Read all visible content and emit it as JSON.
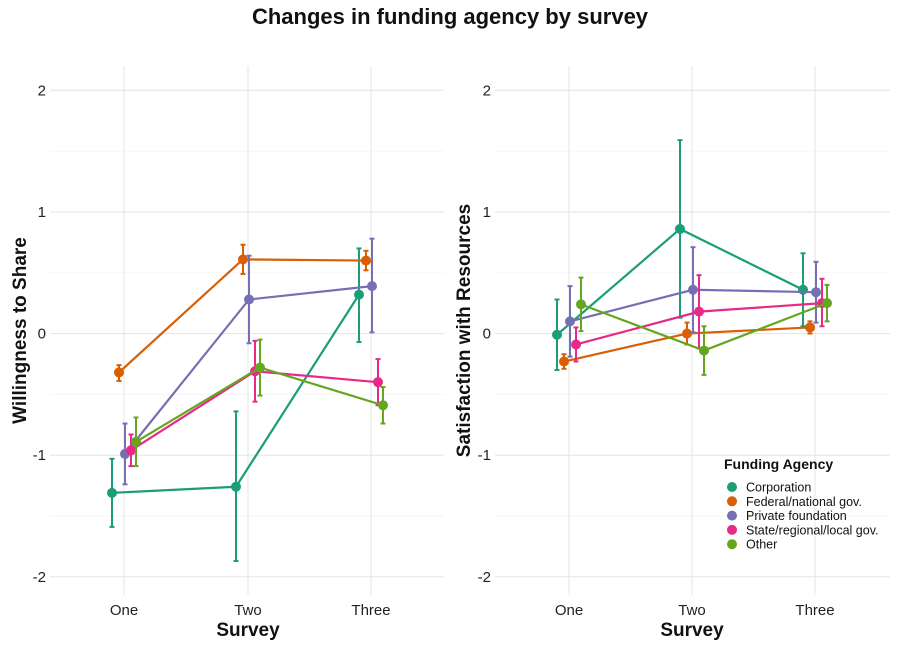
{
  "title": "Changes in funding agency by survey",
  "legend": {
    "title": "Funding Agency",
    "position": "bottom-right of right panel"
  },
  "colors": {
    "Corporation": "#1b9e77",
    "Federal/national gov.": "#d95f02",
    "Private foundation": "#7570b3",
    "State/regional/local gov.": "#e7298a",
    "Other": "#66a61e"
  },
  "chart_data": [
    {
      "type": "line",
      "panel": "left",
      "xlabel": "Survey",
      "ylabel": "Willingness to Share",
      "categories": [
        "One",
        "Two",
        "Three"
      ],
      "ylim": [
        -2.15,
        2.2
      ],
      "yticks": [
        -2,
        -1,
        0,
        1,
        2
      ],
      "grid": true,
      "error_bars": true,
      "series": [
        {
          "name": "Corporation",
          "values": [
            -1.31,
            -1.26,
            0.32
          ],
          "lower": [
            -1.59,
            -1.87,
            -0.07
          ],
          "upper": [
            -1.03,
            -0.64,
            0.7
          ]
        },
        {
          "name": "Federal/national gov.",
          "values": [
            -0.32,
            0.61,
            0.6
          ],
          "lower": [
            -0.39,
            0.49,
            0.52
          ],
          "upper": [
            -0.26,
            0.73,
            0.68
          ]
        },
        {
          "name": "Private foundation",
          "values": [
            -0.99,
            0.28,
            0.39
          ],
          "lower": [
            -1.24,
            -0.08,
            0.01
          ],
          "upper": [
            -0.74,
            0.64,
            0.78
          ]
        },
        {
          "name": "State/regional/local gov.",
          "values": [
            -0.96,
            -0.31,
            -0.4
          ],
          "lower": [
            -1.09,
            -0.56,
            -0.59
          ],
          "upper": [
            -0.83,
            -0.06,
            -0.21
          ]
        },
        {
          "name": "Other",
          "values": [
            -0.89,
            -0.28,
            -0.59
          ],
          "lower": [
            -1.09,
            -0.51,
            -0.74
          ],
          "upper": [
            -0.69,
            -0.05,
            -0.44
          ]
        }
      ]
    },
    {
      "type": "line",
      "panel": "right",
      "xlabel": "Survey",
      "ylabel": "Satisfaction with Resources",
      "categories": [
        "One",
        "Two",
        "Three"
      ],
      "ylim": [
        -2.15,
        2.2
      ],
      "yticks": [
        -2,
        -1,
        0,
        1,
        2
      ],
      "grid": true,
      "error_bars": true,
      "series": [
        {
          "name": "Corporation",
          "values": [
            -0.01,
            0.86,
            0.36
          ],
          "lower": [
            -0.3,
            0.13,
            0.06
          ],
          "upper": [
            0.28,
            1.59,
            0.66
          ]
        },
        {
          "name": "Federal/national gov.",
          "values": [
            -0.23,
            0.0,
            0.05
          ],
          "lower": [
            -0.29,
            -0.09,
            0.0
          ],
          "upper": [
            -0.17,
            0.09,
            0.1
          ]
        },
        {
          "name": "Private foundation",
          "values": [
            0.1,
            0.36,
            0.34
          ],
          "lower": [
            -0.19,
            0.01,
            0.09
          ],
          "upper": [
            0.39,
            0.71,
            0.59
          ]
        },
        {
          "name": "State/regional/local gov.",
          "values": [
            -0.09,
            0.18,
            0.25
          ],
          "lower": [
            -0.23,
            -0.12,
            0.06
          ],
          "upper": [
            0.05,
            0.48,
            0.45
          ]
        },
        {
          "name": "Other",
          "values": [
            0.24,
            -0.14,
            0.25
          ],
          "lower": [
            0.02,
            -0.34,
            0.1
          ],
          "upper": [
            0.46,
            0.06,
            0.4
          ]
        }
      ]
    }
  ]
}
